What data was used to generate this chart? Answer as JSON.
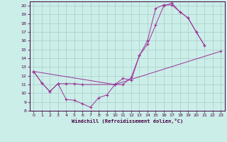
{
  "xlabel": "Windchill (Refroidissement éolien,°C)",
  "background_color": "#cceee8",
  "grid_color": "#aacccc",
  "line_color": "#993399",
  "xlim": [
    -0.5,
    23.5
  ],
  "ylim": [
    8,
    20.5
  ],
  "xticks": [
    0,
    1,
    2,
    3,
    4,
    5,
    6,
    7,
    8,
    9,
    10,
    11,
    12,
    13,
    14,
    15,
    16,
    17,
    18,
    19,
    20,
    21,
    22,
    23
  ],
  "yticks": [
    8,
    9,
    10,
    11,
    12,
    13,
    14,
    15,
    16,
    17,
    18,
    19,
    20
  ],
  "line1_x": [
    0,
    1,
    2,
    3,
    4,
    5,
    6,
    7,
    8,
    9,
    10,
    11,
    12,
    13,
    14,
    15,
    16,
    17,
    18,
    19,
    20,
    21
  ],
  "line1_y": [
    12.5,
    11.2,
    10.2,
    11.1,
    9.3,
    9.2,
    8.8,
    8.4,
    9.5,
    9.8,
    11.0,
    11.7,
    11.5,
    14.3,
    16.0,
    19.7,
    20.1,
    20.1,
    19.3,
    18.6,
    17.0,
    15.5
  ],
  "line2_x": [
    0,
    1,
    2,
    3,
    4,
    5,
    6,
    10,
    11,
    12,
    13,
    14,
    15,
    16,
    17,
    18,
    19,
    20,
    21
  ],
  "line2_y": [
    12.5,
    11.2,
    10.2,
    11.1,
    11.1,
    11.1,
    11.0,
    11.0,
    11.0,
    11.8,
    14.3,
    15.6,
    17.8,
    20.0,
    20.3,
    19.3,
    18.6,
    17.0,
    15.5
  ],
  "line3_x": [
    0,
    10,
    23
  ],
  "line3_y": [
    12.5,
    11.0,
    14.8
  ]
}
